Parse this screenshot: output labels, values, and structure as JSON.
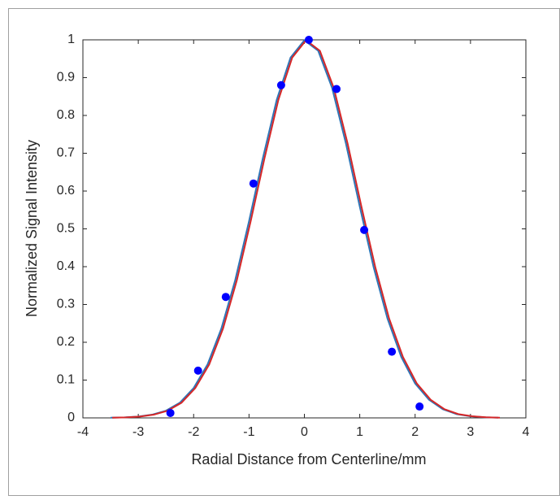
{
  "chart_data": {
    "type": "line",
    "xlabel": "Radial Distance from Centerline/mm",
    "ylabel": "Normalized Signal Intensity",
    "xlim": [
      -4,
      4
    ],
    "xticks": [
      -4,
      -3,
      -2,
      -1,
      0,
      1,
      2,
      3,
      4
    ],
    "ylim": [
      0,
      1
    ],
    "yticks": [
      0,
      0.1,
      0.2,
      0.3,
      0.4,
      0.5,
      0.6,
      0.7,
      0.8,
      0.9,
      1
    ],
    "series": [
      {
        "mode": "line",
        "color": "#2e75b6",
        "x": [
          -3.5,
          -3.25,
          -3.0,
          -2.75,
          -2.5,
          -2.25,
          -2.0,
          -1.75,
          -1.5,
          -1.25,
          -1.0,
          -0.75,
          -0.5,
          -0.25,
          0,
          0.25,
          0.5,
          0.75,
          1.0,
          1.25,
          1.5,
          1.75,
          2.0,
          2.25,
          2.5,
          2.75,
          3.0,
          3.25,
          3.5
        ],
        "values": [
          0.0005,
          0.0013,
          0.0035,
          0.0085,
          0.019,
          0.04,
          0.079,
          0.141,
          0.236,
          0.364,
          0.52,
          0.687,
          0.841,
          0.953,
          0.999,
          0.971,
          0.873,
          0.726,
          0.559,
          0.399,
          0.263,
          0.161,
          0.091,
          0.048,
          0.023,
          0.01,
          0.0043,
          0.0017,
          0.0006
        ]
      },
      {
        "mode": "line",
        "color": "#d62728",
        "x": [
          -3.47,
          -3.22,
          -2.97,
          -2.72,
          -2.47,
          -2.22,
          -1.97,
          -1.72,
          -1.47,
          -1.22,
          -0.97,
          -0.72,
          -0.47,
          -0.22,
          0.03,
          0.28,
          0.53,
          0.78,
          1.03,
          1.28,
          1.53,
          1.78,
          2.03,
          2.28,
          2.53,
          2.78,
          3.03,
          3.28,
          3.53
        ],
        "values": [
          0.0005,
          0.0013,
          0.0035,
          0.0085,
          0.019,
          0.04,
          0.079,
          0.141,
          0.236,
          0.364,
          0.52,
          0.687,
          0.841,
          0.953,
          0.999,
          0.971,
          0.873,
          0.726,
          0.559,
          0.399,
          0.263,
          0.161,
          0.091,
          0.048,
          0.023,
          0.01,
          0.0043,
          0.0017,
          0.0006
        ]
      },
      {
        "mode": "markers",
        "color": "#0000ff",
        "x": [
          -2.42,
          -1.92,
          -1.42,
          -0.92,
          -0.42,
          0.08,
          0.58,
          1.08,
          1.58,
          2.08
        ],
        "values": [
          0.013,
          0.125,
          0.32,
          0.62,
          0.88,
          1.0,
          0.87,
          0.497,
          0.175,
          0.03
        ]
      }
    ]
  }
}
